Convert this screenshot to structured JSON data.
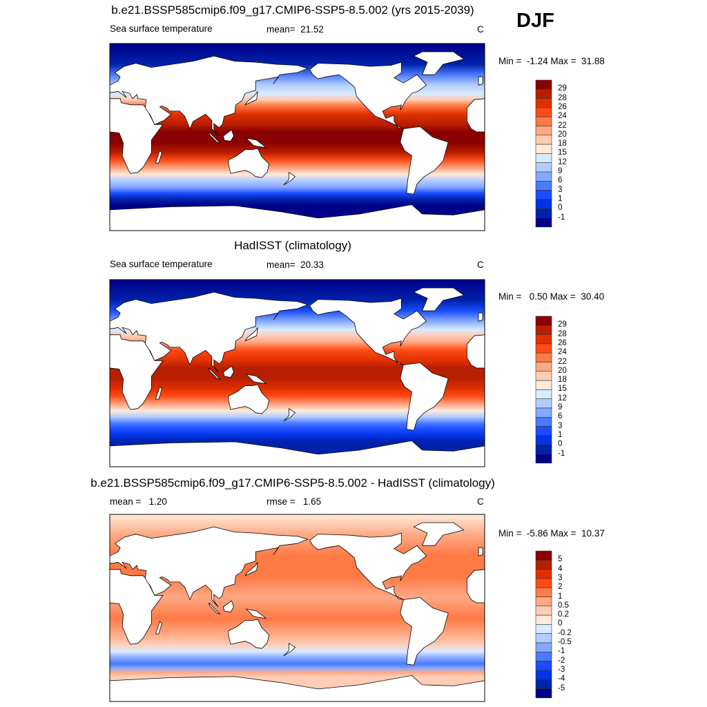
{
  "season": "DJF",
  "panels": [
    {
      "title": "b.e21.BSSP585cmip6.f09_g17.CMIP6-SSP5-8.5.002 (yrs 2015-2039)",
      "left_label": "Sea surface temperature",
      "center_label": "mean=  21.52",
      "units": "C",
      "minmax": "Min =  -1.24 Max =  31.88",
      "field": "model",
      "colorbar_labels": [
        "29",
        "28",
        "26",
        "24",
        "22",
        "20",
        "18",
        "15",
        "12",
        "9",
        "6",
        "3",
        "1",
        "0",
        "-1"
      ]
    },
    {
      "title": "HadISST (climatology)",
      "left_label": "Sea surface temperature",
      "center_label": "mean=  20.33",
      "units": "C",
      "minmax": "Min =   0.50 Max =  30.40",
      "field": "obs",
      "colorbar_labels": [
        "29",
        "28",
        "26",
        "24",
        "22",
        "20",
        "18",
        "15",
        "12",
        "9",
        "6",
        "3",
        "1",
        "0",
        "-1"
      ]
    },
    {
      "title": "b.e21.BSSP585cmip6.f09_g17.CMIP6-SSP5-8.5.002 - HadISST (climatology)",
      "left_label": "mean =   1.20",
      "center_label": "rmse =   1.65",
      "units": "C",
      "minmax": "Min =  -5.86 Max =  10.37",
      "field": "diff",
      "colorbar_labels": [
        "5",
        "4",
        "3",
        "2",
        "1",
        "0.5",
        "0.2",
        "0",
        "-0.2",
        "-0.5",
        "-1",
        "-2",
        "-3",
        "-4",
        "-5"
      ]
    }
  ],
  "colormap": [
    "#8b0000",
    "#b81e00",
    "#e03000",
    "#ff4a15",
    "#ff7a45",
    "#ffa884",
    "#ffcdb5",
    "#ffebda",
    "#d8ebff",
    "#b3ccff",
    "#85a8ff",
    "#4a7bff",
    "#1a4dff",
    "#0033e6",
    "#0022aa",
    "#000088"
  ]
}
